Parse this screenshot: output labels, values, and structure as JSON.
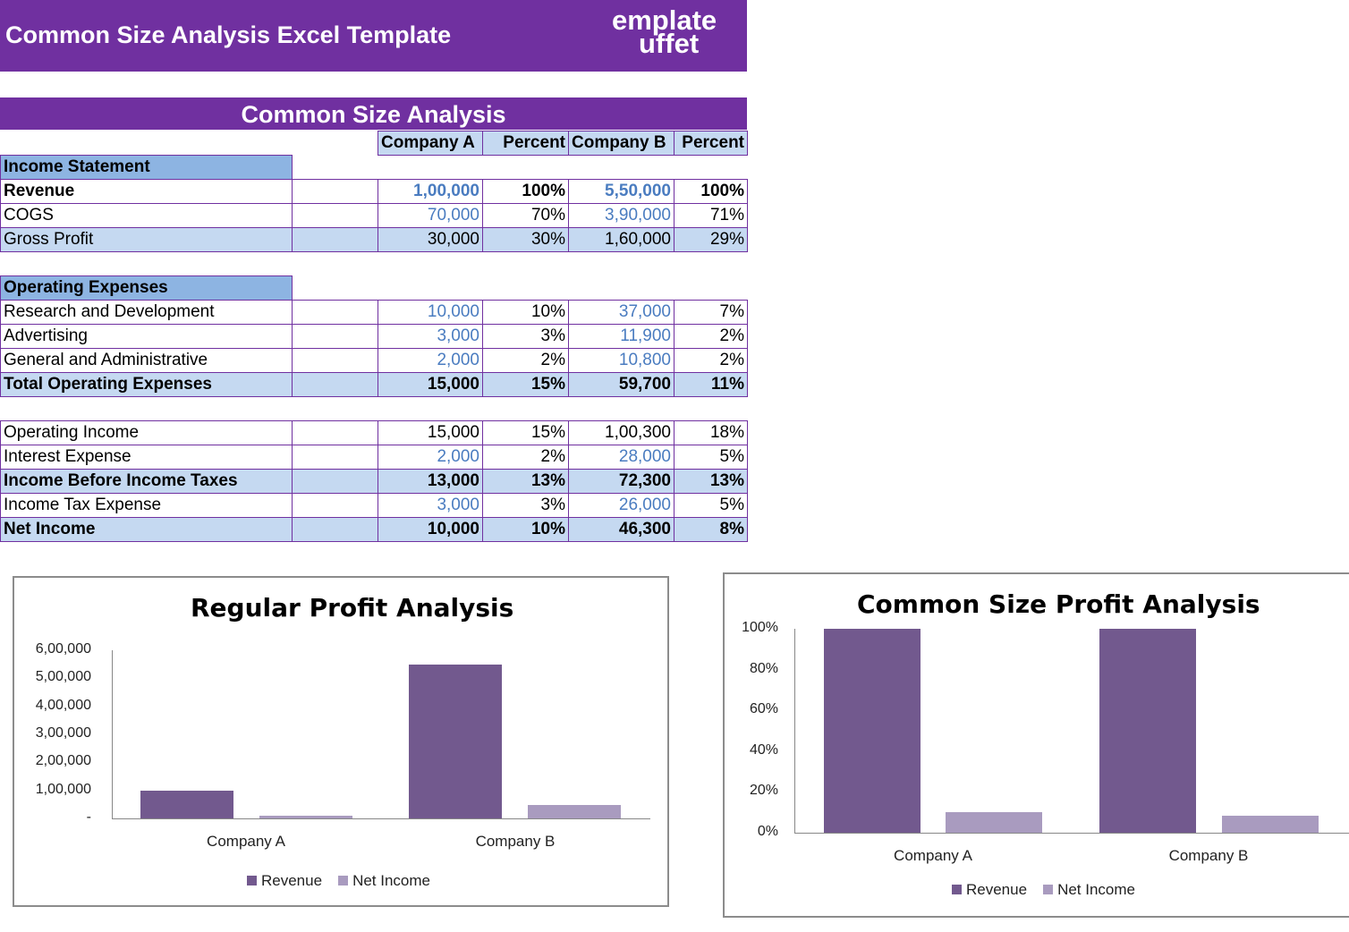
{
  "header": {
    "title": "Common Size Analysis Excel Template",
    "logo_text": "Template Buffet",
    "logo_line1": "emplate",
    "logo_line2": "uffet"
  },
  "section_title": "Common Size Analysis",
  "columns": [
    "Company A",
    "Percent",
    "Company B",
    "Percent"
  ],
  "colors": {
    "purple": "#7030a0",
    "shade": "#c5d9f1",
    "section": "#8db4e2",
    "input_blue": "#4a7cc0",
    "revenue": "#72598e",
    "net_income": "#a99bbf"
  },
  "sections": [
    {
      "title": "Income Statement",
      "rows": [
        {
          "label": "Revenue",
          "bold": true,
          "shade": false,
          "a": "1,00,000",
          "a_input": true,
          "ap": "100%",
          "b": "5,50,000",
          "b_input": true,
          "bp": "100%"
        },
        {
          "label": "COGS",
          "bold": false,
          "shade": false,
          "a": "70,000",
          "a_input": true,
          "ap": "70%",
          "b": "3,90,000",
          "b_input": true,
          "bp": "71%"
        },
        {
          "label": "Gross Profit",
          "bold": false,
          "shade": true,
          "a": "30,000",
          "a_input": false,
          "ap": "30%",
          "b": "1,60,000",
          "b_input": false,
          "bp": "29%"
        }
      ]
    },
    {
      "title": "Operating Expenses",
      "rows": [
        {
          "label": "Research and Development",
          "bold": false,
          "shade": false,
          "a": "10,000",
          "a_input": true,
          "ap": "10%",
          "b": "37,000",
          "b_input": true,
          "bp": "7%"
        },
        {
          "label": "Advertising",
          "bold": false,
          "shade": false,
          "a": "3,000",
          "a_input": true,
          "ap": "3%",
          "b": "11,900",
          "b_input": true,
          "bp": "2%"
        },
        {
          "label": "General and Administrative",
          "bold": false,
          "shade": false,
          "a": "2,000",
          "a_input": true,
          "ap": "2%",
          "b": "10,800",
          "b_input": true,
          "bp": "2%"
        },
        {
          "label": "Total Operating Expenses",
          "bold": true,
          "shade": true,
          "a": "15,000",
          "a_input": false,
          "ap": "15%",
          "b": "59,700",
          "b_input": false,
          "bp": "11%"
        }
      ]
    },
    {
      "title": "",
      "rows": [
        {
          "label": "Operating Income",
          "bold": false,
          "shade": false,
          "a": "15,000",
          "a_input": false,
          "ap": "15%",
          "b": "1,00,300",
          "b_input": false,
          "bp": "18%"
        },
        {
          "label": "Interest Expense",
          "bold": false,
          "shade": false,
          "a": "2,000",
          "a_input": true,
          "ap": "2%",
          "b": "28,000",
          "b_input": true,
          "bp": "5%"
        },
        {
          "label": "Income Before Income Taxes",
          "bold": true,
          "shade": true,
          "a": "13,000",
          "a_input": false,
          "ap": "13%",
          "b": "72,300",
          "b_input": false,
          "bp": "13%"
        },
        {
          "label": "Income Tax Expense",
          "bold": false,
          "shade": false,
          "a": "3,000",
          "a_input": true,
          "ap": "3%",
          "b": "26,000",
          "b_input": true,
          "bp": "5%"
        },
        {
          "label": "Net Income",
          "bold": true,
          "shade": true,
          "a": "10,000",
          "a_input": false,
          "ap": "10%",
          "b": "46,300",
          "b_input": false,
          "bp": "8%"
        }
      ]
    }
  ],
  "chart_data": [
    {
      "type": "bar",
      "title": "Regular Profit Analysis",
      "categories": [
        "Company A",
        "Company B"
      ],
      "series": [
        {
          "name": "Revenue",
          "values": [
            100000,
            550000
          ]
        },
        {
          "name": "Net Income",
          "values": [
            10000,
            46300
          ]
        }
      ],
      "ylim": [
        0,
        600000
      ],
      "yticks": [
        "-",
        "1,00,000",
        "2,00,000",
        "3,00,000",
        "4,00,000",
        "5,00,000",
        "6,00,000"
      ],
      "grid": false,
      "legend": "bottom"
    },
    {
      "type": "bar",
      "title": "Common Size Profit Analysis",
      "categories": [
        "Company A",
        "Company B"
      ],
      "series": [
        {
          "name": "Revenue",
          "values": [
            100,
            100
          ]
        },
        {
          "name": "Net Income",
          "values": [
            10,
            8.4
          ]
        }
      ],
      "ylim": [
        0,
        100
      ],
      "yticks": [
        "0%",
        "20%",
        "40%",
        "60%",
        "80%",
        "100%"
      ],
      "grid": false,
      "legend": "bottom"
    }
  ]
}
